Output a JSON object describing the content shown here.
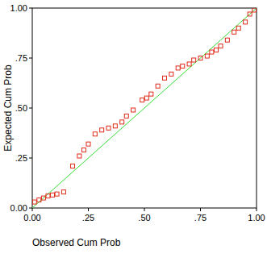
{
  "chart_data": {
    "type": "scatter",
    "x_label": "Observed Cum Prob",
    "y_label": "Expected Cum Prob",
    "xlim": [
      0,
      1
    ],
    "ylim": [
      0,
      1
    ],
    "xticks": [
      {
        "value": 0,
        "label": "0.00"
      },
      {
        "value": 0.25,
        "label": ".25"
      },
      {
        "value": 0.5,
        "label": ".50"
      },
      {
        "value": 0.75,
        "label": ".75"
      },
      {
        "value": 1,
        "label": "1.00"
      }
    ],
    "yticks": [
      {
        "value": 0,
        "label": "0.00"
      },
      {
        "value": 0.25,
        "label": ".25"
      },
      {
        "value": 0.5,
        "label": ".50"
      },
      {
        "value": 0.75,
        "label": ".75"
      },
      {
        "value": 1,
        "label": "1.00"
      }
    ],
    "series": [
      {
        "type": "scatter",
        "marker": "square",
        "color": "#e02a1a",
        "x": [
          0.01,
          0.03,
          0.05,
          0.07,
          0.09,
          0.11,
          0.14,
          0.18,
          0.21,
          0.23,
          0.25,
          0.28,
          0.31,
          0.34,
          0.37,
          0.4,
          0.42,
          0.45,
          0.49,
          0.51,
          0.53,
          0.56,
          0.59,
          0.62,
          0.65,
          0.67,
          0.7,
          0.72,
          0.75,
          0.78,
          0.8,
          0.82,
          0.84,
          0.87,
          0.9,
          0.92,
          0.95,
          0.97,
          0.99
        ],
        "values": [
          0.03,
          0.04,
          0.05,
          0.06,
          0.065,
          0.07,
          0.08,
          0.21,
          0.26,
          0.29,
          0.32,
          0.37,
          0.39,
          0.4,
          0.41,
          0.43,
          0.46,
          0.49,
          0.54,
          0.55,
          0.57,
          0.61,
          0.65,
          0.67,
          0.7,
          0.71,
          0.72,
          0.74,
          0.75,
          0.76,
          0.78,
          0.79,
          0.81,
          0.84,
          0.88,
          0.9,
          0.93,
          0.97,
          0.99
        ]
      },
      {
        "type": "line",
        "line_style": "solid",
        "color": "#33dd33",
        "x": [
          0,
          1
        ],
        "values": [
          0,
          1
        ]
      }
    ]
  }
}
